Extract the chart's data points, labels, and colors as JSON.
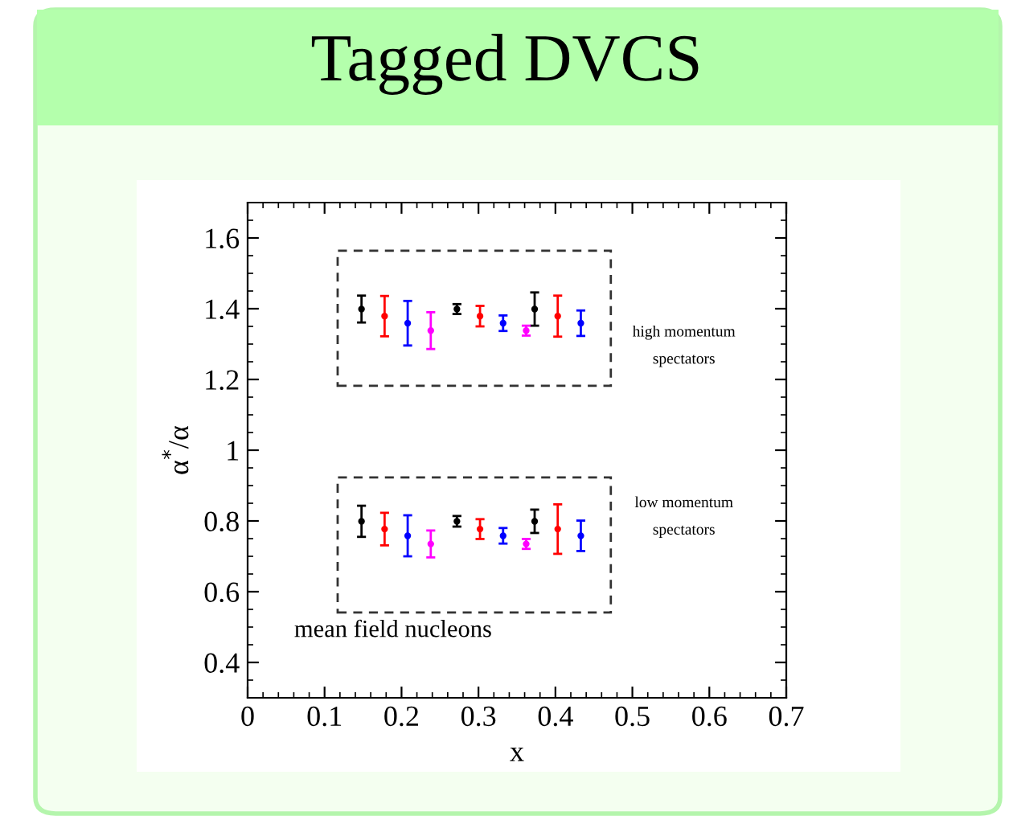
{
  "chart_data": {
    "type": "scatter",
    "title": "Tagged DVCS",
    "xlabel": "x",
    "ylabel": "α$^{*}$/α",
    "xlim": [
      0,
      0.7
    ],
    "xticks": [
      0,
      0.1,
      0.2,
      0.3,
      0.4,
      0.5,
      0.6,
      0.7
    ],
    "ylim": [
      0.3,
      1.7
    ],
    "yticks": [
      0.4,
      0.6,
      0.8,
      1,
      1.2,
      1.4,
      1.6
    ],
    "marker": "circle",
    "series": [
      {
        "color": "#000000",
        "x": [
          0.148,
          0.272,
          0.373,
          0.148,
          0.272,
          0.373
        ],
        "values": [
          1.399,
          1.399,
          1.399,
          0.799,
          0.799,
          0.799
        ],
        "errors": [
          0.038,
          0.014,
          0.047,
          0.044,
          0.015,
          0.033
        ]
      },
      {
        "color": "#ff0000",
        "x": [
          0.178,
          0.302,
          0.403,
          0.178,
          0.302,
          0.403
        ],
        "values": [
          1.379,
          1.379,
          1.379,
          0.777,
          0.777,
          0.777
        ],
        "errors": [
          0.057,
          0.029,
          0.058,
          0.046,
          0.028,
          0.07
        ]
      },
      {
        "color": "#0000ff",
        "x": [
          0.208,
          0.332,
          0.433,
          0.208,
          0.332,
          0.433
        ],
        "values": [
          1.359,
          1.359,
          1.359,
          0.758,
          0.758,
          0.758
        ],
        "errors": [
          0.063,
          0.022,
          0.036,
          0.058,
          0.022,
          0.043
        ]
      },
      {
        "color": "#ff00ff",
        "x": [
          0.238,
          0.362,
          0.238,
          0.362
        ],
        "values": [
          1.338,
          1.338,
          0.735,
          0.735
        ],
        "errors": [
          0.052,
          0.014,
          0.038,
          0.014
        ]
      }
    ],
    "annotations": [
      "high momentum\nspectators",
      "low momentum\nspectators",
      "mean field nucleons"
    ]
  }
}
